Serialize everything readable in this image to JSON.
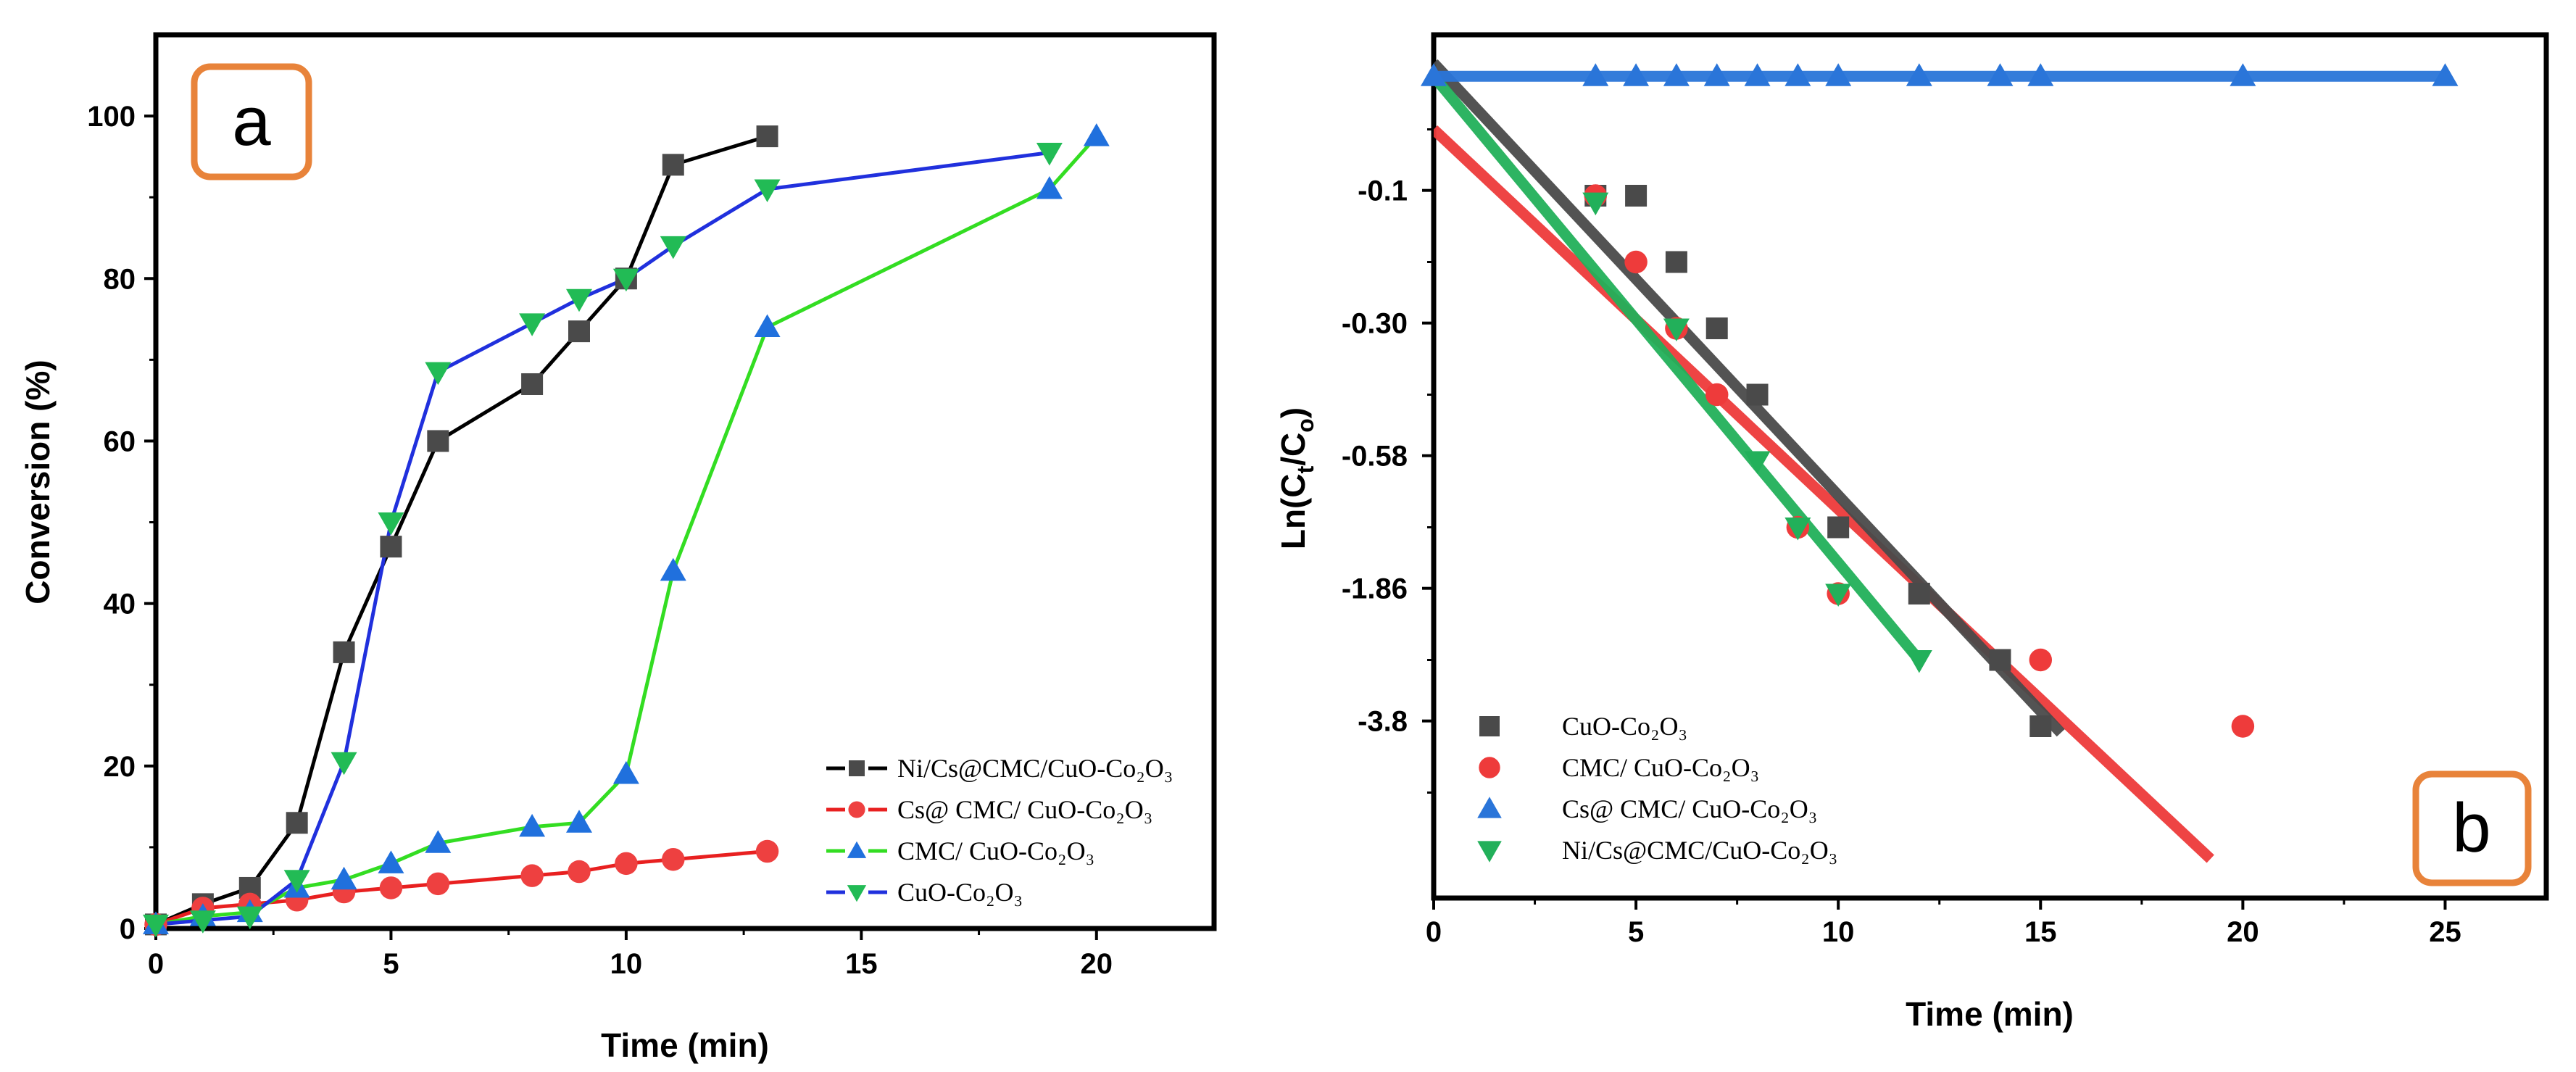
{
  "chart_data": [
    {
      "panel_label": "a",
      "type": "line",
      "xlabel": "Time (min)",
      "ylabel": "Conversion (%)",
      "xlim": [
        0,
        22.5
      ],
      "ylim": [
        0,
        110
      ],
      "xticks": [
        0,
        5,
        10,
        15,
        20
      ],
      "yticks": [
        0,
        20,
        40,
        60,
        80,
        100
      ],
      "grid": false,
      "legend_position": "bottom-right",
      "series": [
        {
          "name": "Ni/Cs@CMC/CuO-Co₂O₃",
          "color": "#000000",
          "marker_color": "#4a4a4a",
          "marker": "square",
          "dashed": false,
          "x": [
            0,
            1,
            2,
            3,
            4,
            5,
            6,
            8,
            9,
            10,
            11,
            13
          ],
          "y": [
            0.5,
            3,
            5,
            13,
            34,
            47,
            60,
            67,
            73.5,
            80,
            94,
            97.5
          ]
        },
        {
          "name": "Cs@ CMC/ CuO-Co₂O₃",
          "color": "#e82020",
          "marker_color": "#ee4040",
          "marker": "circle",
          "dashed": false,
          "x": [
            0,
            1,
            2,
            3,
            4,
            5,
            6,
            8,
            9,
            10,
            11,
            13
          ],
          "y": [
            0.5,
            2.5,
            3,
            3.5,
            4.5,
            5,
            5.5,
            6.5,
            7,
            8,
            8.5,
            9.5
          ]
        },
        {
          "name": "CMC/ CuO-Co₂O₃",
          "color": "#33dd22",
          "marker_color": "#2070dd",
          "marker": "triangle-up",
          "dashed": false,
          "x": [
            0,
            1,
            2,
            3,
            4,
            5,
            6,
            8,
            9,
            10,
            11,
            13,
            19,
            20
          ],
          "y": [
            0.5,
            1.5,
            2,
            5,
            6,
            8,
            10.5,
            12.5,
            13,
            19,
            44,
            74,
            91,
            97.5
          ]
        },
        {
          "name": "CuO-Co₂O₃",
          "color": "#2030dd",
          "marker_color": "#22bb55",
          "marker": "triangle-down",
          "dashed": false,
          "x": [
            0,
            1,
            2,
            3,
            4,
            5,
            6,
            8,
            9,
            10,
            11,
            13,
            19
          ],
          "y": [
            0.5,
            1,
            1.5,
            6,
            20.5,
            50,
            68.5,
            74.5,
            77.5,
            80,
            84,
            91,
            95.5
          ]
        }
      ]
    },
    {
      "panel_label": "b",
      "type": "scatter",
      "xlabel": "Time (min)",
      "ylabel": "Ln(Ct/Co)",
      "ylabel_parts": {
        "prefix": "Ln(C",
        "sub1": "t",
        "mid": "/C",
        "sub2": "o",
        "suffix": ")"
      },
      "xlim": [
        0,
        27.5
      ],
      "xticks": [
        0,
        5,
        10,
        15,
        20,
        25
      ],
      "ytick_labels": [
        "-0.1",
        "-0.30",
        "-0.58",
        "-1.86",
        "-3.8"
      ],
      "ytick_positions": [
        1,
        2,
        3,
        4,
        5
      ],
      "ylim": [
        0,
        6
      ],
      "grid": false,
      "legend_position": "bottom-left",
      "series": [
        {
          "name": "CuO-Co₂O₃",
          "color": "#4a4a4a",
          "marker": "square",
          "x": [
            4,
            5,
            6,
            7,
            8,
            10,
            12,
            14,
            15
          ],
          "y": [
            1.0,
            1.0,
            1.5,
            2.0,
            2.5,
            3.5,
            4.0,
            4.5,
            5.0
          ],
          "fit": [
            [
              0,
              0.0
            ],
            [
              15.5,
              5.05
            ]
          ]
        },
        {
          "name": "CMC/ CuO-Co₂O₃",
          "color": "#ee3b3b",
          "marker": "circle",
          "x": [
            4,
            5,
            6,
            7,
            9,
            10,
            15,
            20
          ],
          "y": [
            1.0,
            1.5,
            2.0,
            2.5,
            3.5,
            4.0,
            4.5,
            5.0
          ],
          "fit": [
            [
              0,
              0.5
            ],
            [
              19.2,
              6.0
            ]
          ]
        },
        {
          "name": "Cs@ CMC/ CuO-Co₂O₃",
          "color": "#2a75d9",
          "marker": "triangle-up",
          "x": [
            0,
            4,
            5,
            6,
            7,
            8,
            9,
            10,
            12,
            14,
            15,
            20,
            25
          ],
          "y": [
            0.1,
            0.1,
            0.1,
            0.1,
            0.1,
            0.1,
            0.1,
            0.1,
            0.1,
            0.1,
            0.1,
            0.1,
            0.1
          ],
          "fit": [
            [
              0,
              0.1
            ],
            [
              25,
              0.1
            ]
          ]
        },
        {
          "name": "Ni/Cs@CMC/CuO-Co₂O₃",
          "color": "#22b05a",
          "marker": "triangle-down",
          "x": [
            4,
            6,
            8,
            9,
            10,
            12
          ],
          "y": [
            1.05,
            2.0,
            3.0,
            3.5,
            4.0,
            4.5
          ],
          "fit": [
            [
              0,
              0.1
            ],
            [
              12,
              4.5
            ]
          ]
        }
      ]
    }
  ],
  "panel_badges": {
    "a": "a",
    "b": "b"
  },
  "badge_color": "#e8833a"
}
